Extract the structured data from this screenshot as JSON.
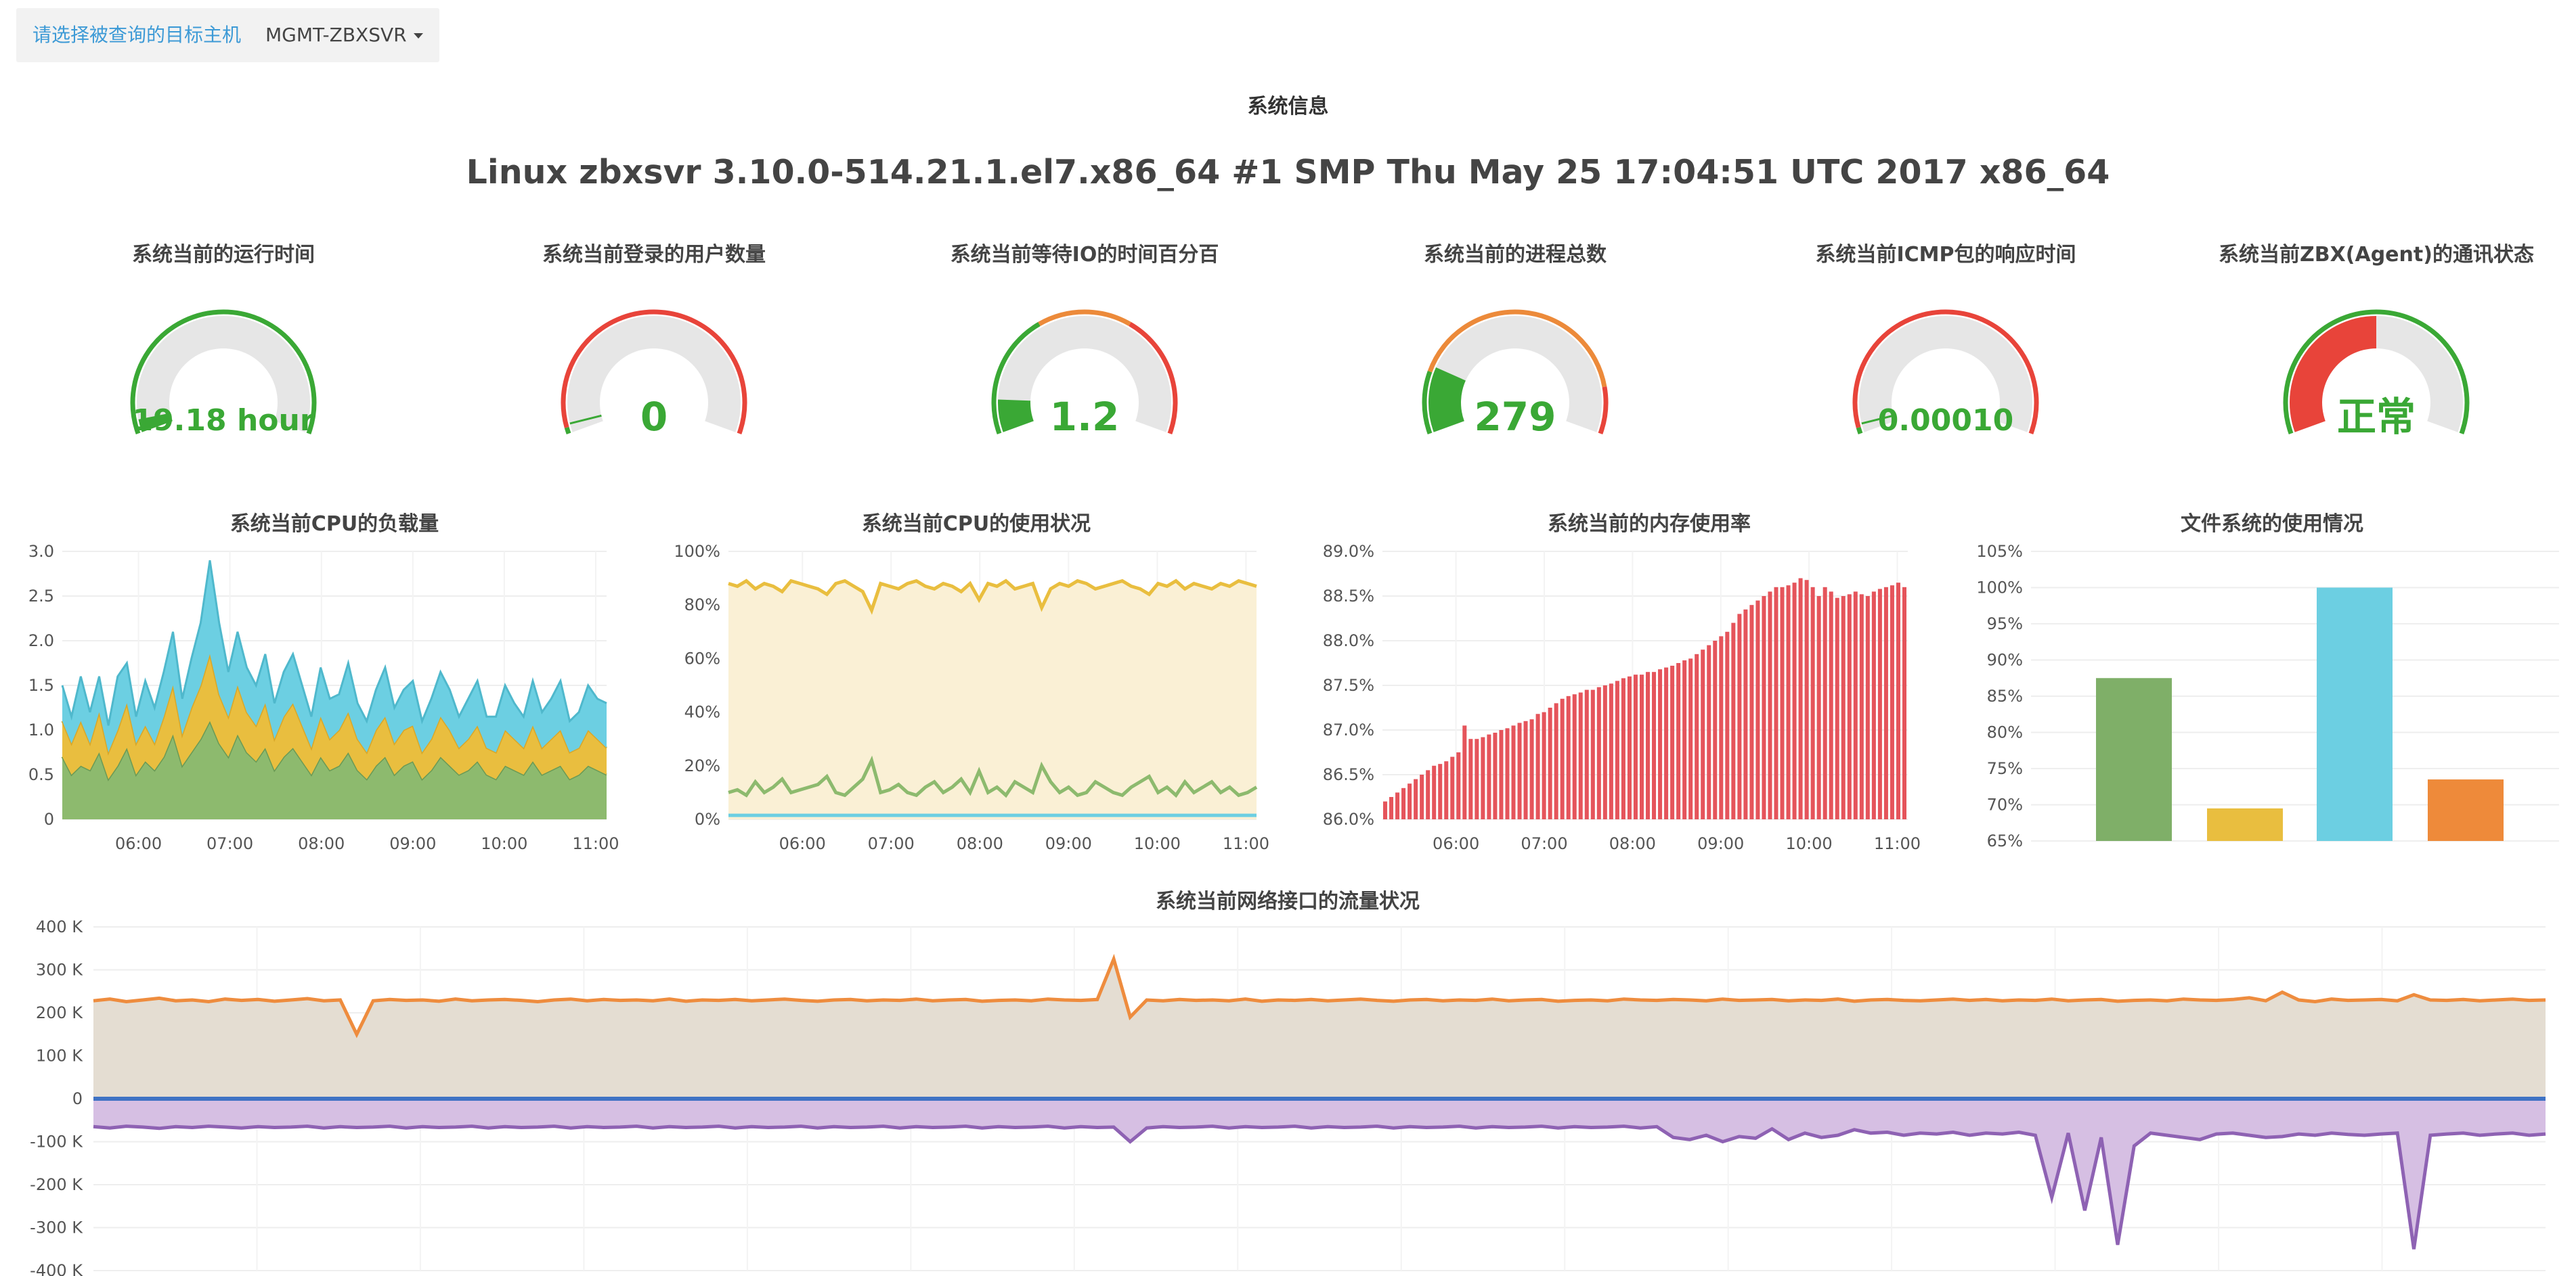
{
  "header": {
    "host_label": "请选择被查询的目标主机",
    "host_value": "MGMT-ZBXSVR",
    "section_title": "系统信息",
    "system_info": "Linux zbxsvr 3.10.0-514.21.1.el7.x86_64 #1 SMP Thu May 25 17:04:51 UTC 2017 x86_64"
  },
  "colors": {
    "green": "#3aa835",
    "red": "#e8443a",
    "orange": "#ec8a3a",
    "grey": "#e6e6e6",
    "cpu_green": "#8dba6e",
    "cpu_yellow": "#e9be3f",
    "cpu_blue": "#6ccfe2",
    "mem_red": "#e5545b",
    "net_orange": "#ee8c3e",
    "net_fill": "#e4ddd2",
    "net_blue": "#3f72c4",
    "net_purple": "#8e62b3",
    "net_purple_fill": "#d6bfe3"
  },
  "gauges": [
    {
      "title": "系统当前的运行时间",
      "value_text": "19.18 hour",
      "fraction": 0.04,
      "style": "arc-green"
    },
    {
      "title": "系统当前登录的用户数量",
      "value_text": "0",
      "fraction": 0.0,
      "style": "arc-red"
    },
    {
      "title": "系统当前等待IO的时间百分百",
      "value_text": "1.2",
      "fraction": 0.1,
      "style": "arc-green-orange"
    },
    {
      "title": "系统当前的进程总数",
      "value_text": "279",
      "fraction": 0.2,
      "style": "arc-green-orange-red"
    },
    {
      "title": "系统当前ICMP包的响应时间",
      "value_text": "0.00010",
      "fraction": 0.0,
      "style": "arc-red"
    },
    {
      "title": "系统当前ZBX(Agent)的通讯状态",
      "value_text": "正常",
      "fraction": 0.5,
      "style": "arc-green-filled-red"
    }
  ],
  "chart_data": [
    {
      "type": "area",
      "title": "系统当前CPU的负载量",
      "ylim": [
        0,
        3.0
      ],
      "yticks": [
        "0",
        "0.5",
        "1.0",
        "1.5",
        "2.0",
        "2.5",
        "3.0"
      ],
      "xticks": [
        "06:00",
        "07:00",
        "08:00",
        "09:00",
        "10:00",
        "11:00"
      ],
      "stacked": true,
      "series": [
        {
          "values": [
            0.7,
            0.5,
            0.6,
            0.55,
            0.75,
            0.45,
            0.6,
            0.8,
            0.5,
            0.65,
            0.55,
            0.7,
            0.95,
            0.6,
            0.75,
            0.9,
            1.1,
            0.85,
            0.7,
            0.95,
            0.75,
            0.65,
            0.8,
            0.55,
            0.7,
            0.8,
            0.65,
            0.5,
            0.7,
            0.55,
            0.6,
            0.75,
            0.55,
            0.45,
            0.6,
            0.7,
            0.5,
            0.6,
            0.65,
            0.45,
            0.55,
            0.7,
            0.6,
            0.5,
            0.55,
            0.65,
            0.5,
            0.45,
            0.6,
            0.55,
            0.5,
            0.65,
            0.5,
            0.55,
            0.6,
            0.45,
            0.5,
            0.6,
            0.55,
            0.5
          ]
        },
        {
          "values": [
            0.4,
            0.35,
            0.5,
            0.3,
            0.45,
            0.3,
            0.4,
            0.5,
            0.35,
            0.4,
            0.3,
            0.45,
            0.55,
            0.35,
            0.5,
            0.6,
            0.75,
            0.55,
            0.45,
            0.55,
            0.45,
            0.4,
            0.5,
            0.35,
            0.45,
            0.5,
            0.4,
            0.3,
            0.45,
            0.35,
            0.4,
            0.45,
            0.35,
            0.3,
            0.4,
            0.45,
            0.35,
            0.4,
            0.4,
            0.3,
            0.35,
            0.45,
            0.4,
            0.3,
            0.35,
            0.4,
            0.3,
            0.3,
            0.4,
            0.35,
            0.3,
            0.4,
            0.3,
            0.35,
            0.4,
            0.3,
            0.3,
            0.4,
            0.35,
            0.3
          ]
        },
        {
          "values": [
            0.4,
            0.3,
            0.5,
            0.35,
            0.4,
            0.3,
            0.6,
            0.45,
            0.3,
            0.5,
            0.4,
            0.5,
            0.6,
            0.4,
            0.55,
            0.7,
            1.05,
            0.8,
            0.5,
            0.6,
            0.5,
            0.45,
            0.55,
            0.4,
            0.5,
            0.55,
            0.45,
            0.35,
            0.55,
            0.45,
            0.4,
            0.55,
            0.4,
            0.35,
            0.45,
            0.55,
            0.4,
            0.45,
            0.5,
            0.35,
            0.45,
            0.5,
            0.45,
            0.35,
            0.45,
            0.5,
            0.35,
            0.4,
            0.5,
            0.4,
            0.35,
            0.5,
            0.4,
            0.45,
            0.55,
            0.35,
            0.4,
            0.5,
            0.45,
            0.5
          ]
        }
      ]
    },
    {
      "type": "line",
      "title": "系统当前CPU的使用状况",
      "ylim": [
        0,
        100
      ],
      "yticks": [
        "0%",
        "20%",
        "40%",
        "60%",
        "80%",
        "100%"
      ],
      "xticks": [
        "06:00",
        "07:00",
        "08:00",
        "09:00",
        "10:00",
        "11:00"
      ],
      "series": [
        {
          "values": [
            88,
            87,
            89,
            86,
            88,
            87,
            85,
            89,
            88,
            87,
            86,
            84,
            88,
            89,
            87,
            85,
            78,
            88,
            87,
            86,
            88,
            89,
            87,
            86,
            88,
            87,
            85,
            88,
            82,
            88,
            87,
            89,
            86,
            87,
            88,
            79,
            86,
            88,
            87,
            89,
            88,
            86,
            87,
            88,
            89,
            87,
            86,
            84,
            88,
            87,
            89,
            86,
            88,
            87,
            86,
            88,
            87,
            89,
            88,
            87
          ]
        },
        {
          "values": [
            10,
            11,
            9,
            14,
            10,
            12,
            15,
            10,
            11,
            12,
            13,
            16,
            10,
            9,
            12,
            15,
            22,
            10,
            11,
            13,
            10,
            9,
            12,
            14,
            10,
            12,
            15,
            10,
            18,
            10,
            12,
            9,
            14,
            12,
            10,
            20,
            14,
            10,
            12,
            9,
            10,
            14,
            12,
            10,
            9,
            12,
            14,
            16,
            10,
            12,
            9,
            14,
            10,
            12,
            14,
            10,
            12,
            9,
            10,
            12
          ]
        },
        {
          "values": [
            1.5,
            1.5,
            1.5,
            1.5,
            1.5,
            1.5,
            1.5,
            1.5,
            1.5,
            1.5,
            1.5,
            1.5,
            1.5,
            1.5,
            1.5,
            1.5,
            1.5,
            1.5,
            1.5,
            1.5,
            1.5,
            1.5,
            1.5,
            1.5,
            1.5,
            1.5,
            1.5,
            1.5,
            1.5,
            1.5,
            1.5,
            1.5,
            1.5,
            1.5,
            1.5,
            1.5,
            1.5,
            1.5,
            1.5,
            1.5,
            1.5,
            1.5,
            1.5,
            1.5,
            1.5,
            1.5,
            1.5,
            1.5,
            1.5,
            1.5,
            1.5,
            1.5,
            1.5,
            1.5,
            1.5,
            1.5,
            1.5,
            1.5,
            1.5,
            1.5
          ]
        }
      ]
    },
    {
      "type": "bar",
      "title": "系统当前的内存使用率",
      "ylim": [
        86.0,
        89.0
      ],
      "yticks": [
        "86.0%",
        "86.5%",
        "87.0%",
        "87.5%",
        "88.0%",
        "88.5%",
        "89.0%"
      ],
      "xticks": [
        "06:00",
        "07:00",
        "08:00",
        "09:00",
        "10:00",
        "11:00"
      ],
      "values": [
        86.2,
        86.25,
        86.3,
        86.35,
        86.4,
        86.45,
        86.5,
        86.55,
        86.6,
        86.62,
        86.65,
        86.7,
        86.75,
        87.05,
        86.9,
        86.9,
        86.92,
        86.95,
        86.97,
        87.0,
        87.02,
        87.05,
        87.08,
        87.1,
        87.12,
        87.18,
        87.2,
        87.25,
        87.3,
        87.35,
        87.38,
        87.4,
        87.42,
        87.45,
        87.45,
        87.48,
        87.5,
        87.52,
        87.55,
        87.58,
        87.6,
        87.62,
        87.62,
        87.65,
        87.65,
        87.68,
        87.7,
        87.72,
        87.75,
        87.78,
        87.8,
        87.85,
        87.9,
        87.95,
        88.0,
        88.05,
        88.1,
        88.2,
        88.3,
        88.35,
        88.4,
        88.45,
        88.5,
        88.55,
        88.6,
        88.6,
        88.62,
        88.65,
        88.7,
        88.68,
        88.6,
        88.5,
        88.6,
        88.55,
        88.48,
        88.5,
        88.52,
        88.55,
        88.52,
        88.5,
        88.55,
        88.58,
        88.6,
        88.62,
        88.65,
        88.6
      ]
    },
    {
      "type": "bar",
      "title": "文件系统的使用情况",
      "ylim": [
        65,
        105
      ],
      "yticks": [
        "65%",
        "70%",
        "75%",
        "80%",
        "85%",
        "90%",
        "95%",
        "100%",
        "105%"
      ],
      "values": [
        87.5,
        69.5,
        100,
        73.5
      ],
      "bar_colors": [
        "#7faf68",
        "#e9be3f",
        "#6ccfe2",
        "#ee8a3a"
      ]
    },
    {
      "type": "area",
      "title": "系统当前网络接口的流量状况",
      "ylim": [
        -400,
        400
      ],
      "yticks": [
        "400 K",
        "300 K",
        "200 K",
        "100 K",
        "0",
        "-100 K",
        "-200 K",
        "-300 K",
        "-400 K"
      ],
      "series": [
        {
          "values": [
            228,
            232,
            226,
            230,
            234,
            228,
            230,
            226,
            232,
            229,
            231,
            227,
            230,
            233,
            228,
            230,
            150,
            228,
            231,
            229,
            230,
            227,
            232,
            228,
            230,
            231,
            229,
            226,
            230,
            232,
            228,
            231,
            229,
            230,
            228,
            232,
            227,
            230,
            229,
            231,
            228,
            230,
            232,
            229,
            227,
            230,
            231,
            228,
            230,
            229,
            232,
            228,
            230,
            231,
            227,
            229,
            230,
            228,
            232,
            230,
            229,
            231,
            325,
            190,
            230,
            228,
            231,
            229,
            230,
            228,
            232,
            227,
            230,
            229,
            231,
            228,
            230,
            232,
            229,
            227,
            230,
            231,
            228,
            230,
            229,
            232,
            228,
            230,
            231,
            227,
            229,
            230,
            228,
            232,
            230,
            229,
            231,
            230,
            228,
            232,
            229,
            230,
            231,
            228,
            230,
            229,
            232,
            227,
            230,
            231,
            229,
            228,
            230,
            232,
            229,
            231,
            228,
            230,
            229,
            232,
            228,
            230,
            231,
            227,
            229,
            230,
            228,
            232,
            230,
            229,
            231,
            235,
            228,
            248,
            230,
            226,
            232,
            229,
            230,
            231,
            228,
            242,
            230,
            229,
            231,
            228,
            230,
            232,
            229,
            230
          ]
        },
        {
          "values": [
            0,
            0,
            0,
            0,
            0,
            0,
            0,
            0,
            0,
            0,
            0,
            0,
            0,
            0,
            0,
            0,
            0,
            0,
            0,
            0,
            0,
            0,
            0,
            0,
            0,
            0,
            0,
            0,
            0,
            0,
            0,
            0,
            0,
            0,
            0,
            0,
            0,
            0,
            0,
            0,
            0,
            0,
            0,
            0,
            0,
            0,
            0,
            0,
            0,
            0,
            0,
            0,
            0,
            0,
            0,
            0,
            0,
            0,
            0,
            0,
            0,
            0,
            0,
            0,
            0,
            0,
            0,
            0,
            0,
            0,
            0,
            0,
            0,
            0,
            0,
            0,
            0,
            0,
            0,
            0,
            0,
            0,
            0,
            0,
            0,
            0,
            0,
            0,
            0,
            0,
            0,
            0,
            0,
            0,
            0,
            0,
            0,
            0,
            0,
            0,
            0,
            0,
            0,
            0,
            0,
            0,
            0,
            0,
            0,
            0,
            0,
            0,
            0,
            0,
            0,
            0,
            0,
            0,
            0,
            0,
            0,
            0,
            0,
            0,
            0,
            0,
            0,
            0,
            0,
            0,
            0,
            0,
            0,
            0,
            0,
            0,
            0,
            0,
            0,
            0,
            0,
            0,
            0,
            0,
            0,
            0,
            0,
            0,
            0,
            0
          ]
        },
        {
          "values": [
            -65,
            -68,
            -64,
            -66,
            -69,
            -65,
            -67,
            -64,
            -66,
            -68,
            -65,
            -67,
            -66,
            -64,
            -68,
            -65,
            -67,
            -66,
            -64,
            -68,
            -65,
            -67,
            -66,
            -64,
            -68,
            -65,
            -67,
            -66,
            -64,
            -68,
            -65,
            -67,
            -66,
            -64,
            -68,
            -65,
            -67,
            -66,
            -64,
            -68,
            -65,
            -67,
            -66,
            -64,
            -68,
            -65,
            -67,
            -66,
            -64,
            -68,
            -65,
            -67,
            -66,
            -64,
            -68,
            -65,
            -67,
            -66,
            -64,
            -68,
            -65,
            -67,
            -66,
            -100,
            -68,
            -65,
            -67,
            -66,
            -64,
            -68,
            -65,
            -67,
            -66,
            -64,
            -68,
            -65,
            -67,
            -66,
            -64,
            -68,
            -65,
            -67,
            -66,
            -64,
            -68,
            -65,
            -67,
            -66,
            -64,
            -68,
            -65,
            -67,
            -66,
            -64,
            -68,
            -65,
            -90,
            -95,
            -85,
            -100,
            -88,
            -92,
            -70,
            -95,
            -80,
            -90,
            -85,
            -72,
            -80,
            -78,
            -85,
            -80,
            -82,
            -78,
            -85,
            -80,
            -82,
            -78,
            -85,
            -230,
            -80,
            -260,
            -90,
            -340,
            -110,
            -80,
            -85,
            -90,
            -95,
            -82,
            -80,
            -85,
            -90,
            -88,
            -82,
            -85,
            -80,
            -83,
            -85,
            -82,
            -80,
            -350,
            -85,
            -82,
            -80,
            -85,
            -82,
            -80,
            -85,
            -82
          ]
        }
      ]
    }
  ]
}
